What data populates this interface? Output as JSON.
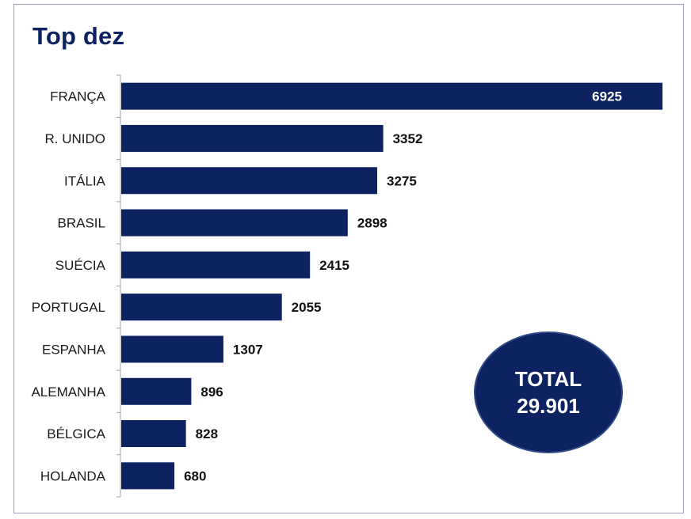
{
  "title": "Top dez",
  "total": {
    "label": "TOTAL",
    "value": "29.901"
  },
  "colors": {
    "bar": "#0d2260",
    "axis": "#a0a0a0",
    "title": "#0d2260"
  },
  "chart_data": {
    "type": "bar",
    "orientation": "horizontal",
    "title": "Top dez",
    "categories": [
      "FRANÇA",
      "R. UNIDO",
      "ITÁLIA",
      "BRASIL",
      "SUÉCIA",
      "PORTUGAL",
      "ESPANHA",
      "ALEMANHA",
      "BÉLGICA",
      "HOLANDA"
    ],
    "values": [
      6925,
      3352,
      3275,
      2898,
      2415,
      2055,
      1307,
      896,
      828,
      680
    ],
    "xlabel": "",
    "ylabel": "",
    "grid": false,
    "legend": "none",
    "data_labels": true
  }
}
